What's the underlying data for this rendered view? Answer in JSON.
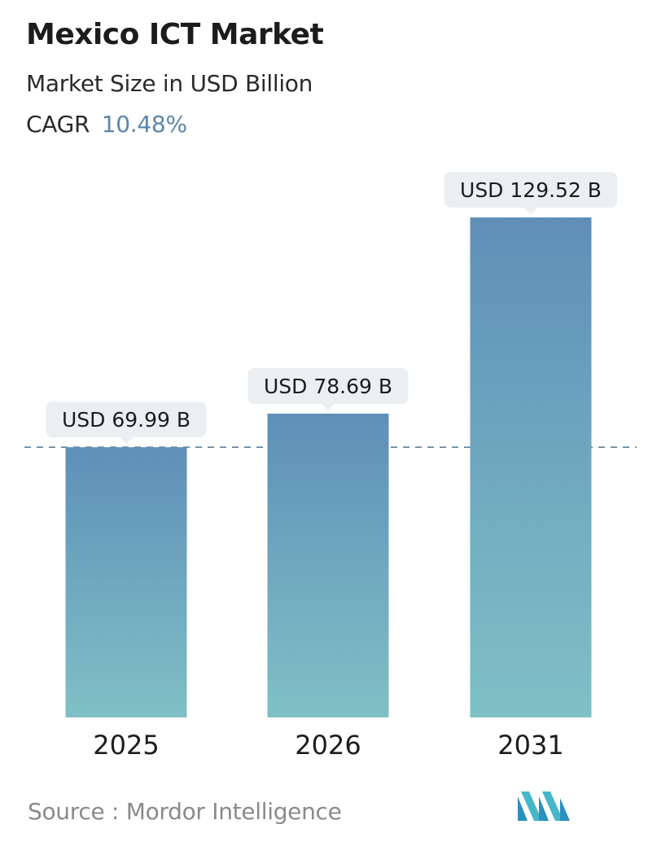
{
  "header": {
    "title": "Mexico ICT Market",
    "subtitle": "Market Size in USD Billion",
    "cagr_label": "CAGR",
    "cagr_value": "10.48%"
  },
  "footer": {
    "source_label": "Source :",
    "source_name": "Mordor Intelligence",
    "logo_icon": "mordor-intelligence-logo-icon"
  },
  "chart_data": {
    "type": "bar",
    "categories": [
      "2025",
      "2026",
      "2031"
    ],
    "values": [
      69.99,
      78.69,
      129.52
    ],
    "data_labels": [
      "USD 69.99 B",
      "USD 78.69 B",
      "USD 129.52 B"
    ],
    "title": "Mexico ICT Market",
    "subtitle": "Market Size in USD Billion",
    "xlabel": "",
    "ylabel": "",
    "ylim": [
      0,
      140
    ],
    "grid": false,
    "reference_line_value": 69.99,
    "colors": {
      "bar_top": "#5f8fb8",
      "bar_bottom": "#7fc0c6",
      "label_bg": "#eceff1",
      "reference_line": "#5f7f99"
    }
  }
}
